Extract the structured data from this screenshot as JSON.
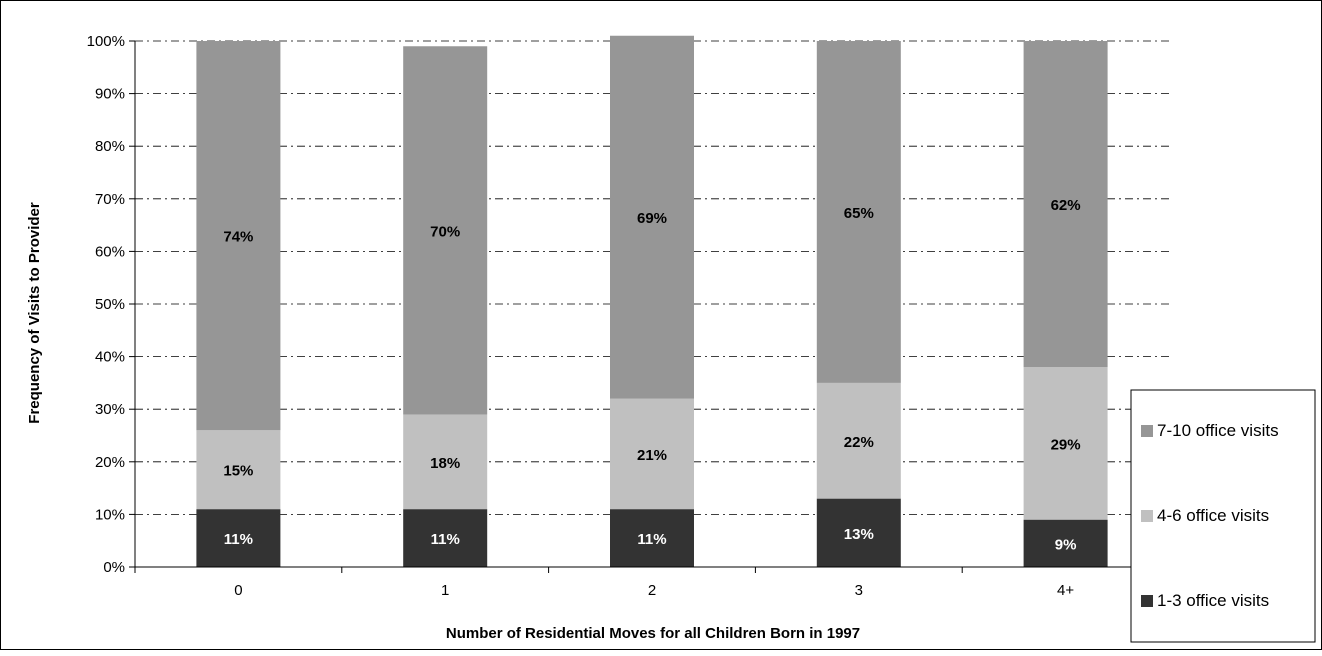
{
  "chart_data": {
    "type": "bar",
    "stacked": true,
    "normalized_percent": true,
    "xlabel": "Number of Residential Moves for all Children Born in 1997",
    "ylabel": "Frequency of Visits to Provider",
    "categories": [
      "0",
      "1",
      "2",
      "3",
      "4+"
    ],
    "ylim": [
      0,
      100
    ],
    "yticks": [
      "0%",
      "10%",
      "20%",
      "30%",
      "40%",
      "50%",
      "60%",
      "70%",
      "80%",
      "90%",
      "100%"
    ],
    "grid": true,
    "legend_position": "right",
    "series": [
      {
        "name": "1-3 office visits",
        "color": "#333333",
        "values": [
          11,
          11,
          11,
          13,
          9
        ],
        "labels": [
          "11%",
          "11%",
          "11%",
          "13%",
          "9%"
        ]
      },
      {
        "name": "4-6 office visits",
        "color": "#c0c0c0",
        "values": [
          15,
          18,
          21,
          22,
          29
        ],
        "labels": [
          "15%",
          "18%",
          "21%",
          "22%",
          "29%"
        ]
      },
      {
        "name": "7-10 office visits",
        "color": "#969696",
        "values": [
          74,
          70,
          69,
          65,
          62
        ],
        "labels": [
          "74%",
          "70%",
          "69%",
          "65%",
          "62%"
        ]
      }
    ]
  }
}
